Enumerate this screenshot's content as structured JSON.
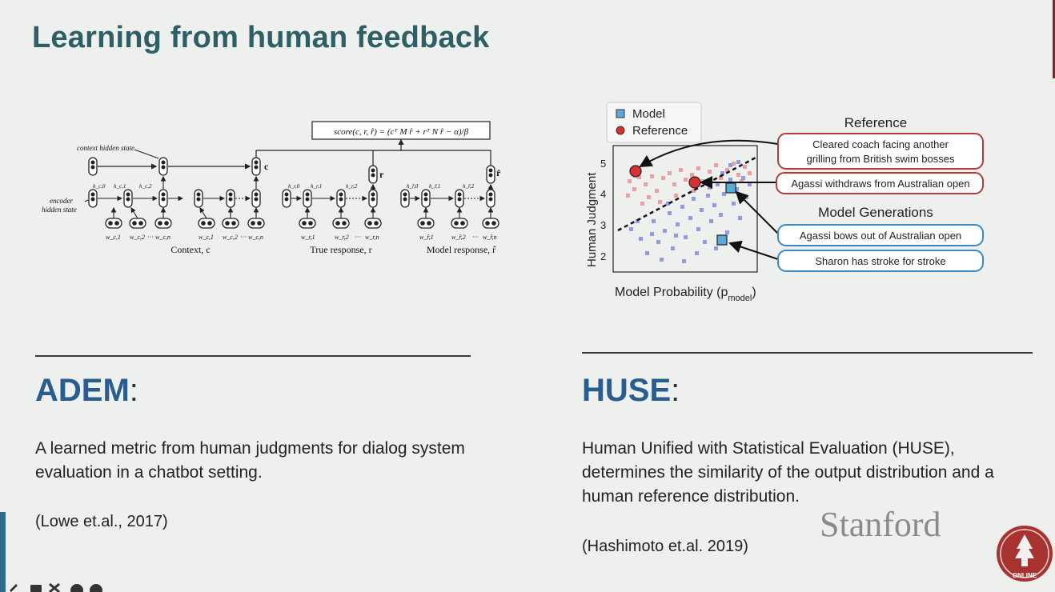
{
  "slide": {
    "title": "Learning from human feedback"
  },
  "adem_diagram": {
    "score_formula": "score(c, r, r̂) = (cᵀ M r̂ + rᵀ N r̂ − α)/β",
    "context_hidden_state_label": "context hidden state",
    "encoder_hidden_state_label_1": "encoder",
    "encoder_hidden_state_label_2": "hidden state",
    "c_label": "c",
    "r_label": "r",
    "rhat_label": "r̂",
    "context_h0": "h_c,0",
    "context_h1": "h_c,1",
    "context_h2": "h_c,2",
    "true_h0": "h_r,0",
    "true_h1": "h_r,1",
    "true_h2": "h_r,2",
    "model_h0": "h_r̂,0",
    "model_h1": "h_r̂,1",
    "model_h2": "h_r̂,2",
    "context_w1": "w_c,1",
    "context_w2": "w_c,2",
    "context_wn": "w_c,n",
    "true_w1": "w_r,1",
    "true_w2": "w_r,2",
    "true_wn": "w_r,n",
    "model_w1": "w_r̂,1",
    "model_w2": "w_r̂,2",
    "model_wn": "w_r̂,n",
    "context_caption": "Context, c",
    "true_caption": "True response, r",
    "model_caption": "Model response, r̂",
    "dots": "···"
  },
  "huse_figure": {
    "legend_model": "Model",
    "legend_reference": "Reference",
    "y_axis_label": "Human Judgment",
    "x_axis_label": "Model Probability (p",
    "x_axis_sub": "model",
    "x_axis_close": ")",
    "y_ticks": [
      "5",
      "4",
      "3",
      "2"
    ],
    "reference_header": "Reference",
    "ref_box_1_line1": "Cleared coach facing another",
    "ref_box_1_line2": "grilling from British swim bosses",
    "ref_box_2": "Agassi withdraws from Australian open",
    "model_header": "Model Generations",
    "model_box_1": "Agassi bows out of Australian open",
    "model_box_2": "Sharon has stroke for stroke",
    "colors": {
      "model": "#8a93d8",
      "reference": "#e39a9a",
      "ref_highlight": "#d83030",
      "model_highlight": "#5aaad8"
    }
  },
  "adem": {
    "heading": "ADEM",
    "colon": ":",
    "description": "A learned metric from human judgments for dialog system evaluation in a chatbot setting.",
    "citation": "(Lowe et.al., 2017)"
  },
  "huse": {
    "heading": "HUSE",
    "colon": ":",
    "description": "Human Unified with Statistical Evaluation (HUSE), determines the similarity of the output distribution and a human reference distribution.",
    "citation": "(Hashimoto et.al. 2019)"
  },
  "branding": {
    "wordmark": "Stanford",
    "seal_text": "ONLINE"
  }
}
